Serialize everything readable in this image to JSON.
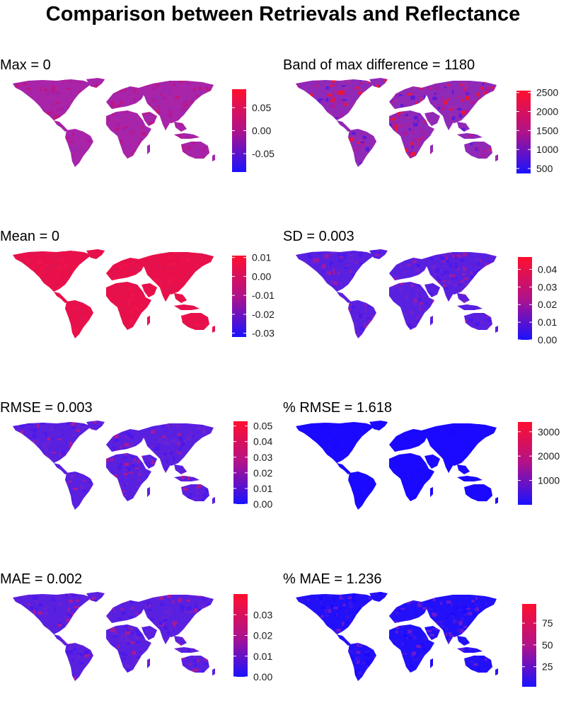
{
  "title": "Comparison between Retrievals and Reflectance",
  "colors": {
    "low": "#1a12ff",
    "mid": "#b0128a",
    "high": "#ff0f2e",
    "background": "#ffffff"
  },
  "panels": [
    {
      "id": "max",
      "title": "Max = 0",
      "dominant_level": 0.55,
      "fill_colors": [
        "#a824a8",
        "#b01a98",
        "#9a28b4",
        "#c0167c"
      ],
      "legend": {
        "ticks": [
          "0.05",
          "0.00",
          "-0.05"
        ],
        "tick_values": [
          0.05,
          0.0,
          -0.05
        ],
        "range": [
          -0.09,
          0.09
        ]
      }
    },
    {
      "id": "band",
      "title": "Band of max difference = 1180",
      "dominant_level": 0.45,
      "fill_colors": [
        "#9028b8",
        "#a02aa8",
        "#5a1ad8",
        "#e8163c",
        "#b01a98"
      ],
      "legend": {
        "ticks": [
          "2500",
          "2000",
          "1500",
          "1000",
          "500"
        ],
        "tick_values": [
          2500,
          2000,
          1500,
          1000,
          500
        ],
        "range": [
          370,
          2550
        ]
      }
    },
    {
      "id": "mean",
      "title": "Mean = 0",
      "dominant_level": 0.95,
      "fill_colors": [
        "#e8104a",
        "#f0124a",
        "#de1454"
      ],
      "legend": {
        "ticks": [
          "0.01",
          "0.00",
          "-0.01",
          "-0.02",
          "-0.03"
        ],
        "tick_values": [
          0.01,
          0.0,
          -0.01,
          -0.02,
          -0.03
        ],
        "range": [
          -0.032,
          0.011
        ]
      }
    },
    {
      "id": "sd",
      "title": "SD = 0.003",
      "dominant_level": 0.15,
      "fill_colors": [
        "#5a20e0",
        "#4a18ec",
        "#6a22d4",
        "#9a1aa8"
      ],
      "legend": {
        "ticks": [
          "0.04",
          "0.03",
          "0.02",
          "0.01",
          "0.00"
        ],
        "tick_values": [
          0.04,
          0.03,
          0.02,
          0.01,
          0.0
        ],
        "range": [
          0.0,
          0.047
        ]
      }
    },
    {
      "id": "rmse",
      "title": "RMSE = 0.003",
      "dominant_level": 0.15,
      "fill_colors": [
        "#5a20e0",
        "#4a18ec",
        "#6a22d4",
        "#a81a98"
      ],
      "legend": {
        "ticks": [
          "0.05",
          "0.04",
          "0.03",
          "0.02",
          "0.01",
          "0.00"
        ],
        "tick_values": [
          0.05,
          0.04,
          0.03,
          0.02,
          0.01,
          0.0
        ],
        "range": [
          0.0,
          0.053
        ]
      }
    },
    {
      "id": "prmse",
      "title": "% RMSE = 1.618",
      "dominant_level": 0.02,
      "fill_colors": [
        "#1a08ff",
        "#1e0cf8",
        "#1808ff"
      ],
      "legend": {
        "ticks": [
          "3000",
          "2000",
          "1000"
        ],
        "tick_values": [
          3000,
          2000,
          1000
        ],
        "range": [
          0,
          3400
        ]
      }
    },
    {
      "id": "mae",
      "title": "MAE = 0.002",
      "dominant_level": 0.15,
      "fill_colors": [
        "#5a20e0",
        "#4a18ec",
        "#6a22d4",
        "#a81a98"
      ],
      "legend": {
        "ticks": [
          "0.03",
          "0.02",
          "0.01",
          "0.00"
        ],
        "tick_values": [
          0.03,
          0.02,
          0.01,
          0.0
        ],
        "range": [
          0.0,
          0.04
        ]
      }
    },
    {
      "id": "pmae",
      "title": "% MAE = 1.236",
      "dominant_level": 0.05,
      "fill_colors": [
        "#2210f8",
        "#1a08ff",
        "#3a14ec",
        "#6a1ad0"
      ],
      "legend": {
        "ticks": [
          "75",
          "50",
          "25"
        ],
        "tick_values": [
          75,
          50,
          25
        ],
        "range": [
          2,
          97
        ]
      }
    }
  ]
}
